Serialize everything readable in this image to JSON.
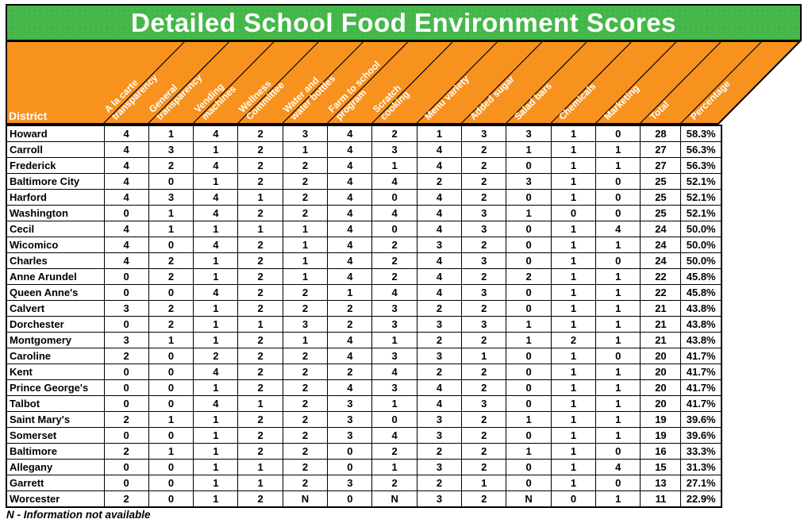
{
  "title": "Detailed School Food Environment Scores",
  "footnote": "N - Information not available",
  "colors": {
    "title_bar_green": "#45B649",
    "header_orange": "#F7921E",
    "border_black": "#000000",
    "header_text_white": "#FFFFFF",
    "cell_text_black": "#000000"
  },
  "header": {
    "district_label": "District",
    "columns": [
      "A la carte\ntransparency",
      "General\ntransparency",
      "Vending\nmachines",
      "Wellness\nCommittee",
      "Water and\nwater bottles",
      "Farm to school\nprogram",
      "Scratch\ncooking",
      "Menu variety",
      "Added sugar",
      "Salad bars",
      "Chemicals",
      "Marketing",
      "Total",
      "Percentage"
    ]
  },
  "chart_data": {
    "type": "table",
    "title": "Detailed School Food Environment Scores",
    "row_header": "District",
    "columns": [
      "A la carte transparency",
      "General transparency",
      "Vending machines",
      "Wellness Committee",
      "Water and water bottles",
      "Farm to school program",
      "Scratch cooking",
      "Menu variety",
      "Added sugar",
      "Salad bars",
      "Chemicals",
      "Marketing",
      "Total",
      "Percentage"
    ],
    "rows": [
      {
        "district": "Howard",
        "scores": [
          "4",
          "1",
          "4",
          "2",
          "3",
          "4",
          "2",
          "1",
          "3",
          "3",
          "1",
          "0"
        ],
        "total": "28",
        "percentage": "58.3%"
      },
      {
        "district": "Carroll",
        "scores": [
          "4",
          "3",
          "1",
          "2",
          "1",
          "4",
          "3",
          "4",
          "2",
          "1",
          "1",
          "1"
        ],
        "total": "27",
        "percentage": "56.3%"
      },
      {
        "district": "Frederick",
        "scores": [
          "4",
          "2",
          "4",
          "2",
          "2",
          "4",
          "1",
          "4",
          "2",
          "0",
          "1",
          "1"
        ],
        "total": "27",
        "percentage": "56.3%"
      },
      {
        "district": "Baltimore City",
        "scores": [
          "4",
          "0",
          "1",
          "2",
          "2",
          "4",
          "4",
          "2",
          "2",
          "3",
          "1",
          "0"
        ],
        "total": "25",
        "percentage": "52.1%"
      },
      {
        "district": "Harford",
        "scores": [
          "4",
          "3",
          "4",
          "1",
          "2",
          "4",
          "0",
          "4",
          "2",
          "0",
          "1",
          "0"
        ],
        "total": "25",
        "percentage": "52.1%"
      },
      {
        "district": "Washington",
        "scores": [
          "0",
          "1",
          "4",
          "2",
          "2",
          "4",
          "4",
          "4",
          "3",
          "1",
          "0",
          "0"
        ],
        "total": "25",
        "percentage": "52.1%"
      },
      {
        "district": "Cecil",
        "scores": [
          "4",
          "1",
          "1",
          "1",
          "1",
          "4",
          "0",
          "4",
          "3",
          "0",
          "1",
          "4"
        ],
        "total": "24",
        "percentage": "50.0%"
      },
      {
        "district": "Wicomico",
        "scores": [
          "4",
          "0",
          "4",
          "2",
          "1",
          "4",
          "2",
          "3",
          "2",
          "0",
          "1",
          "1"
        ],
        "total": "24",
        "percentage": "50.0%"
      },
      {
        "district": "Charles",
        "scores": [
          "4",
          "2",
          "1",
          "2",
          "1",
          "4",
          "2",
          "4",
          "3",
          "0",
          "1",
          "0"
        ],
        "total": "24",
        "percentage": "50.0%"
      },
      {
        "district": "Anne Arundel",
        "scores": [
          "0",
          "2",
          "1",
          "2",
          "1",
          "4",
          "2",
          "4",
          "2",
          "2",
          "1",
          "1"
        ],
        "total": "22",
        "percentage": "45.8%"
      },
      {
        "district": "Queen Anne's",
        "scores": [
          "0",
          "0",
          "4",
          "2",
          "2",
          "1",
          "4",
          "4",
          "3",
          "0",
          "1",
          "1"
        ],
        "total": "22",
        "percentage": "45.8%"
      },
      {
        "district": "Calvert",
        "scores": [
          "3",
          "2",
          "1",
          "2",
          "2",
          "2",
          "3",
          "2",
          "2",
          "0",
          "1",
          "1"
        ],
        "total": "21",
        "percentage": "43.8%"
      },
      {
        "district": "Dorchester",
        "scores": [
          "0",
          "2",
          "1",
          "1",
          "3",
          "2",
          "3",
          "3",
          "3",
          "1",
          "1",
          "1"
        ],
        "total": "21",
        "percentage": "43.8%"
      },
      {
        "district": "Montgomery",
        "scores": [
          "3",
          "1",
          "1",
          "2",
          "1",
          "4",
          "1",
          "2",
          "2",
          "1",
          "2",
          "1"
        ],
        "total": "21",
        "percentage": "43.8%"
      },
      {
        "district": "Caroline",
        "scores": [
          "2",
          "0",
          "2",
          "2",
          "2",
          "4",
          "3",
          "3",
          "1",
          "0",
          "1",
          "0"
        ],
        "total": "20",
        "percentage": "41.7%"
      },
      {
        "district": "Kent",
        "scores": [
          "0",
          "0",
          "4",
          "2",
          "2",
          "2",
          "4",
          "2",
          "2",
          "0",
          "1",
          "1"
        ],
        "total": "20",
        "percentage": "41.7%"
      },
      {
        "district": "Prince George's",
        "scores": [
          "0",
          "0",
          "1",
          "2",
          "2",
          "4",
          "3",
          "4",
          "2",
          "0",
          "1",
          "1"
        ],
        "total": "20",
        "percentage": "41.7%"
      },
      {
        "district": "Talbot",
        "scores": [
          "0",
          "0",
          "4",
          "1",
          "2",
          "3",
          "1",
          "4",
          "3",
          "0",
          "1",
          "1"
        ],
        "total": "20",
        "percentage": "41.7%"
      },
      {
        "district": "Saint Mary's",
        "scores": [
          "2",
          "1",
          "1",
          "2",
          "2",
          "3",
          "0",
          "3",
          "2",
          "1",
          "1",
          "1"
        ],
        "total": "19",
        "percentage": "39.6%"
      },
      {
        "district": "Somerset",
        "scores": [
          "0",
          "0",
          "1",
          "2",
          "2",
          "3",
          "4",
          "3",
          "2",
          "0",
          "1",
          "1"
        ],
        "total": "19",
        "percentage": "39.6%"
      },
      {
        "district": "Baltimore",
        "scores": [
          "2",
          "1",
          "1",
          "2",
          "2",
          "0",
          "2",
          "2",
          "2",
          "1",
          "1",
          "0"
        ],
        "total": "16",
        "percentage": "33.3%"
      },
      {
        "district": "Allegany",
        "scores": [
          "0",
          "0",
          "1",
          "1",
          "2",
          "0",
          "1",
          "3",
          "2",
          "0",
          "1",
          "4"
        ],
        "total": "15",
        "percentage": "31.3%"
      },
      {
        "district": "Garrett",
        "scores": [
          "0",
          "0",
          "1",
          "1",
          "2",
          "3",
          "2",
          "2",
          "1",
          "0",
          "1",
          "0"
        ],
        "total": "13",
        "percentage": "27.1%"
      },
      {
        "district": "Worcester",
        "scores": [
          "2",
          "0",
          "1",
          "2",
          "N",
          "0",
          "N",
          "3",
          "2",
          "N",
          "0",
          "1"
        ],
        "total": "11",
        "percentage": "22.9%"
      }
    ],
    "note": "N - Information not available",
    "legend": "none",
    "grid": "on"
  }
}
